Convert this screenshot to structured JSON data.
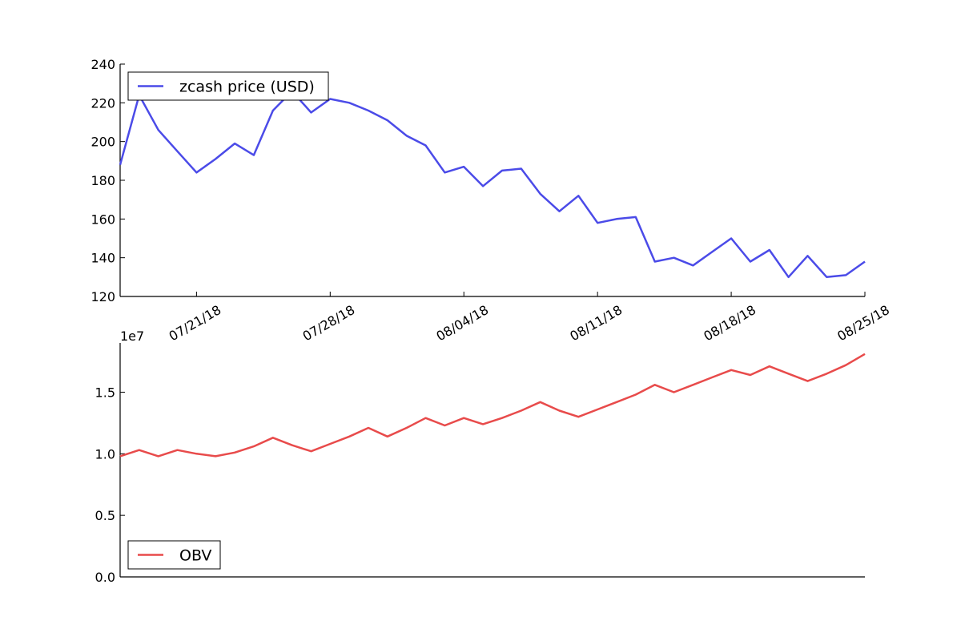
{
  "chart_data": [
    {
      "type": "line",
      "title": "",
      "xlabel": "",
      "ylabel": "",
      "x_start": "07/17/18",
      "x_end": "08/25/18",
      "ylim": [
        120,
        240
      ],
      "yticks": [
        "120",
        "140",
        "160",
        "180",
        "200",
        "220",
        "240"
      ],
      "xticks": [
        {
          "date": "07/21/18",
          "label": "07/21/18"
        },
        {
          "date": "07/28/18",
          "label": "07/28/18"
        },
        {
          "date": "08/04/18",
          "label": "08/04/18"
        },
        {
          "date": "08/11/18",
          "label": "08/11/18"
        },
        {
          "date": "08/18/18",
          "label": "08/18/18"
        },
        {
          "date": "08/25/18",
          "label": "08/25/18"
        }
      ],
      "legend": "upper left",
      "grid": false,
      "series": [
        {
          "name": "zcash price (USD)",
          "color": "#4b4be8",
          "values": [
            188,
            224,
            206,
            195,
            184,
            191,
            199,
            193,
            216,
            226,
            215,
            222,
            220,
            216,
            211,
            203,
            198,
            184,
            187,
            177,
            185,
            186,
            173,
            164,
            172,
            158,
            160,
            161,
            138,
            140,
            136,
            143,
            150,
            138,
            144,
            130,
            141,
            130,
            131,
            138
          ]
        }
      ]
    },
    {
      "type": "line",
      "title": "",
      "xlabel": "",
      "ylabel": "",
      "y_offset_label": "1e7",
      "x_start": "07/17/18",
      "x_end": "08/25/18",
      "ylim": [
        0,
        1.9
      ],
      "yticks": [
        "0.0",
        "0.5",
        "1.0",
        "1.5"
      ],
      "legend": "lower left",
      "grid": false,
      "series": [
        {
          "name": "OBV",
          "color": "#e84b4b",
          "values": [
            0.98,
            1.03,
            0.98,
            1.03,
            1.0,
            0.98,
            1.01,
            1.06,
            1.13,
            1.07,
            1.02,
            1.08,
            1.14,
            1.21,
            1.14,
            1.21,
            1.29,
            1.23,
            1.29,
            1.24,
            1.29,
            1.35,
            1.42,
            1.35,
            1.3,
            1.36,
            1.42,
            1.48,
            1.56,
            1.5,
            1.56,
            1.62,
            1.68,
            1.64,
            1.71,
            1.65,
            1.59,
            1.65,
            1.72,
            1.81
          ]
        }
      ]
    }
  ]
}
